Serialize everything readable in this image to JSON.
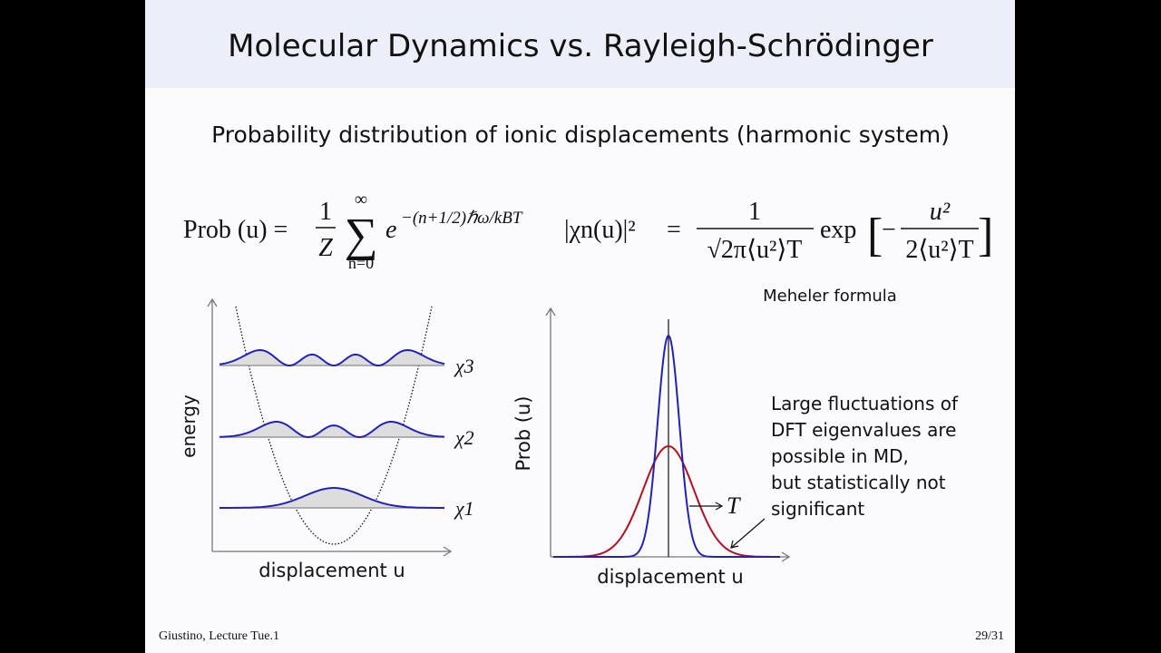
{
  "header": {
    "title": "Molecular Dynamics vs. Rayleigh-Schrödinger"
  },
  "subtitle": "Probability distribution of ionic displacements (harmonic system)",
  "formula": {
    "lhs": "Prob (u) =",
    "frac1_num": "1",
    "frac1_den": "Z",
    "sum": "∑",
    "sum_top": "∞",
    "sum_bottom": "n=0",
    "exp_base": "e",
    "exp_power": "−(n+1/2)ℏω/kBT",
    "wavefunction": "|χn(u)|²",
    "equals": "=",
    "frac2_num": "1",
    "frac2_den": "√2π⟨u²⟩T",
    "exp": "exp",
    "bracket_open": "[",
    "minus": "−",
    "frac3_num": "u²",
    "frac3_den": "2⟨u²⟩T",
    "bracket_close": "]"
  },
  "note": "Meheler formula",
  "left_diagram": {
    "y_label": "energy",
    "x_label": "displacement u",
    "levels": [
      "χ3",
      "χ2",
      "χ1"
    ]
  },
  "right_diagram": {
    "y_label": "Prob (u)",
    "x_label": "displacement u",
    "arrow_label": "T"
  },
  "annotation": [
    "Large fluctuations of",
    "DFT eigenvalues are",
    "possible in MD,",
    "but statistically not",
    "significant"
  ],
  "footer": {
    "left": "Giustino, Lecture Tue.1",
    "right": "29/31"
  }
}
